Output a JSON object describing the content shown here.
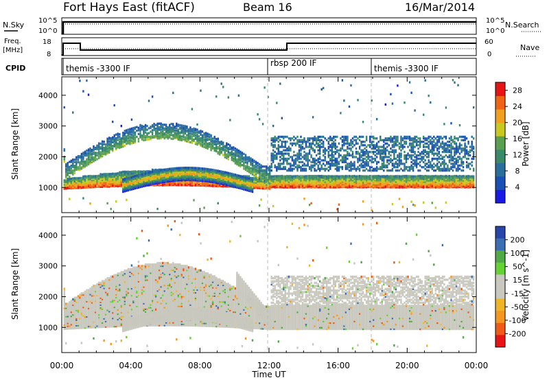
{
  "header": {
    "station": "Fort Hays East (fitACF)",
    "beam": "Beam 16",
    "date": "16/Mar/2014"
  },
  "labels": {
    "nsky": "N.Sky",
    "nsearch": "N.Search",
    "freq_line1": "Freq.",
    "freq_line2": "[MHz]",
    "nave": "Nave",
    "cpid": "CPID",
    "nsky_ticks": [
      "10^5",
      "10^0"
    ],
    "nsearch_ticks": [
      "10^5",
      "10^0"
    ],
    "freq_ticks": [
      "18",
      "8"
    ],
    "nave_ticks": [
      "60",
      "0"
    ]
  },
  "cpid_segments": [
    {
      "label": "themis -3300 IF",
      "start_hour": 0
    },
    {
      "label": "rbsp 200 IF",
      "start_hour": 12
    },
    {
      "label": "themis -3300 IF",
      "start_hour": 18
    }
  ],
  "colors": {
    "power_scale": [
      "#1a1ae6",
      "#1a50b4",
      "#2a6e9c",
      "#3a8a6a",
      "#5aa050",
      "#c8c81e",
      "#f0a01e",
      "#f06414",
      "#e61414"
    ],
    "velocity_scale": [
      "#e61414",
      "#f05a14",
      "#f5961e",
      "#f0b428",
      "#c8c8be",
      "#c8c8be",
      "#64d232",
      "#50aa46",
      "#3c6eb4",
      "#2846aa"
    ]
  },
  "chart_data": [
    {
      "type": "heatmap",
      "title": "Power",
      "xlabel": "Time UT",
      "ylabel": "Slant Range [km]",
      "xlim": [
        "00:00",
        "24:00"
      ],
      "ylim": [
        180,
        4600
      ],
      "x_ticks": [
        "00:00",
        "04:00",
        "08:00",
        "12:00",
        "16:00",
        "20:00",
        "00:00"
      ],
      "y_ticks": [
        1000,
        2000,
        3000,
        4000
      ],
      "colorbar": {
        "label": "Power [dB]",
        "ticks": [
          4,
          8,
          12,
          16,
          20,
          24,
          28
        ],
        "range": [
          0,
          30
        ]
      },
      "regions": [
        {
          "description": "main scatter band",
          "hours": [
            0,
            24
          ],
          "range_km": [
            900,
            1500
          ],
          "typical_value_db": 24
        },
        {
          "description": "arc 00-12 UT",
          "hours": [
            0,
            12
          ],
          "range_km": [
            1500,
            3000
          ],
          "typical_value_db": 8
        },
        {
          "description": "detached lower arc",
          "hours": [
            3.5,
            11
          ],
          "range_km": [
            1000,
            1600
          ],
          "typical_value_db": 16
        },
        {
          "description": "upper band 12-24 UT",
          "hours": [
            12,
            24
          ],
          "range_km": [
            1700,
            2700
          ],
          "typical_value_db": 6
        }
      ]
    },
    {
      "type": "heatmap",
      "title": "Velocity",
      "xlabel": "Time UT",
      "ylabel": "Slant Range [km]",
      "xlim": [
        "00:00",
        "24:00"
      ],
      "ylim": [
        180,
        4600
      ],
      "x_ticks": [
        "00:00",
        "04:00",
        "08:00",
        "12:00",
        "16:00",
        "20:00",
        "00:00"
      ],
      "y_ticks": [
        1000,
        2000,
        3000,
        4000
      ],
      "colorbar": {
        "label": "Velocity [m s^-1]",
        "ticks": [
          200,
          100,
          50,
          15,
          -15,
          -50,
          -100,
          -200
        ],
        "range": [
          -250,
          250
        ]
      },
      "regions": [
        {
          "description": "ground scatter band",
          "hours": [
            0,
            24
          ],
          "range_km": [
            900,
            2700
          ],
          "typical_value_ms": 0
        },
        {
          "description": "detached lower arc",
          "hours": [
            3.5,
            11
          ],
          "range_km": [
            800,
            1500
          ],
          "typical_value_ms": 40
        },
        {
          "description": "descending streak near 12 UT",
          "hours": [
            10,
            12.5
          ],
          "range_km": [
            800,
            2400
          ],
          "typical_value_ms": 40
        }
      ]
    }
  ]
}
